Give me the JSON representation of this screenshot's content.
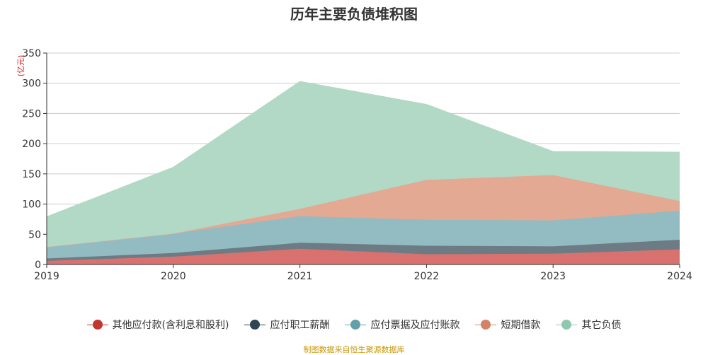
{
  "chart_data": {
    "type": "area",
    "stacked": true,
    "title": "历年主要负债堆积图",
    "ylabel": "(亿元)",
    "xlabel": "",
    "categories": [
      "2019",
      "2020",
      "2021",
      "2022",
      "2023",
      "2024"
    ],
    "ylim": [
      0,
      350
    ],
    "yticks": [
      0,
      50,
      100,
      150,
      200,
      250,
      300,
      350
    ],
    "grid": true,
    "legend_position": "bottom",
    "series": [
      {
        "name": "其他应付款(含利息和股利)",
        "color": "#c23531",
        "fill": "#d9726e",
        "values": [
          6,
          13,
          26,
          17,
          18,
          25
        ]
      },
      {
        "name": "应付职工薪酬",
        "color": "#2f4554",
        "fill": "#6c7b84",
        "values": [
          4,
          6,
          10,
          14,
          12,
          16
        ]
      },
      {
        "name": "应付票据及应付账款",
        "color": "#61a0a8",
        "fill": "#93bcc2",
        "values": [
          19,
          32,
          44,
          43,
          43,
          48
        ]
      },
      {
        "name": "短期借款",
        "color": "#d48265",
        "fill": "#e3a993",
        "values": [
          0,
          0,
          12,
          66,
          75,
          16
        ]
      },
      {
        "name": "其它负债",
        "color": "#91c7ae",
        "fill": "#b2d8c6",
        "values": [
          50,
          110,
          211,
          125,
          39,
          81
        ]
      }
    ]
  },
  "source_note": "制图数据来自恒生聚源数据库"
}
